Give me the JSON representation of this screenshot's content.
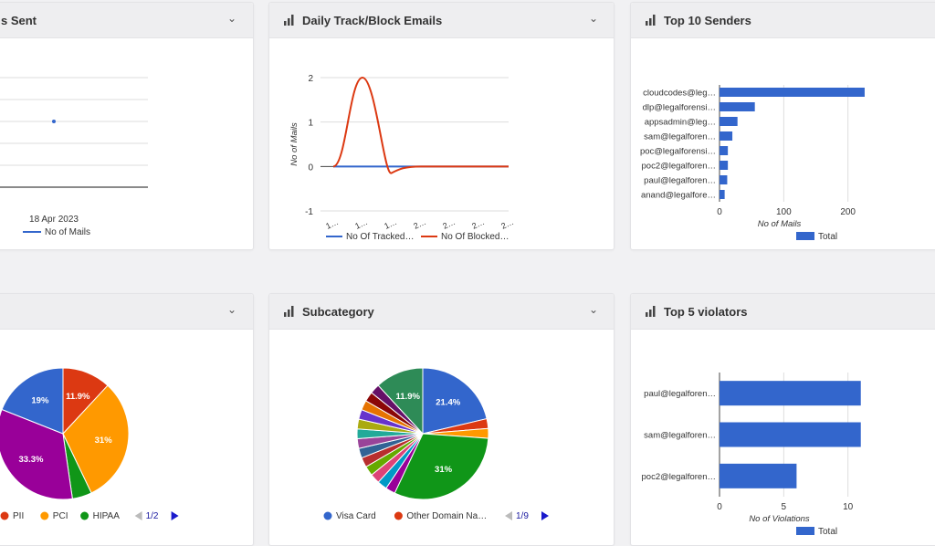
{
  "colors": {
    "blue": "#3366cc",
    "red": "#dc3912",
    "orange": "#ff9900",
    "green": "#109618",
    "purple": "#990099",
    "teal": "#2e8b57"
  },
  "widgets": {
    "mails_sent": {
      "title": "s Sent",
      "icon": "chevron-down-icon",
      "chart_data": {
        "type": "line",
        "x": [
          "18 Apr 2023"
        ],
        "series": [
          {
            "name": "No of Mails",
            "values": [
              1
            ]
          }
        ],
        "xlabel": "",
        "ylabel": ""
      }
    },
    "track_block": {
      "title": "Daily Track/Block Emails",
      "icon": "bar-chart-icon",
      "chart_data": {
        "type": "line",
        "categories": [
          "1…",
          "1…",
          "1…",
          "2…",
          "2…",
          "2…",
          "2…"
        ],
        "series": [
          {
            "name": "No Of Tracked…",
            "values": [
              0,
              0,
              0,
              0,
              0,
              0,
              0
            ]
          },
          {
            "name": "No Of Blocked…",
            "values": [
              0,
              2,
              0,
              0,
              0,
              0,
              0
            ]
          }
        ],
        "y_ticks": [
          "2",
          "1",
          "0",
          "-1"
        ],
        "ylim": [
          -1,
          2
        ],
        "ylabel": "No of Mails",
        "xlabel": ""
      }
    },
    "top_senders": {
      "title": "Top 10 Senders",
      "icon": "bar-chart-icon",
      "chart_data": {
        "type": "bar",
        "orientation": "horizontal",
        "categories": [
          "cloudcodes@leg…",
          "dlp@legalforensi…",
          "appsadmin@leg…",
          "sam@legalforen…",
          "poc@legalforensi…",
          "poc2@legalforen…",
          "paul@legalforen…",
          "anand@legalfore…"
        ],
        "series": [
          {
            "name": "Total",
            "values": [
              226,
              55,
              28,
              20,
              13,
              13,
              12,
              8
            ]
          }
        ],
        "x_ticks": [
          "0",
          "100",
          "200"
        ],
        "xlim": [
          0,
          300
        ],
        "xlabel": "No of Mails",
        "ylabel": ""
      }
    },
    "category": {
      "title": "",
      "icon": "chevron-down-icon",
      "chart_data": {
        "type": "pie",
        "slices": [
          {
            "label": "PII",
            "value": 11.9,
            "text": "11.9%"
          },
          {
            "label": "PCI",
            "value": 31,
            "text": "31%"
          },
          {
            "label": "HIPAA",
            "value": 4.8,
            "text": ""
          },
          {
            "label": "",
            "value": 33.3,
            "text": "33.3%"
          },
          {
            "label": "",
            "value": 19,
            "text": "19%"
          }
        ],
        "legend": [
          "PII",
          "PCI",
          "HIPAA"
        ],
        "pager": "1/2"
      }
    },
    "subcategory": {
      "title": "Subcategory",
      "icon": "bar-chart-icon",
      "chart_data": {
        "type": "pie",
        "slices": [
          {
            "label": "Visa Card",
            "value": 21.4,
            "text": "21.4%"
          },
          {
            "label": "Other Domain Na…",
            "value": 2.4,
            "text": ""
          },
          {
            "label": "",
            "value": 2.4,
            "text": ""
          },
          {
            "label": "",
            "value": 31,
            "text": "31%"
          },
          {
            "label": "",
            "value": 2.4,
            "text": ""
          },
          {
            "label": "",
            "value": 2.4,
            "text": ""
          },
          {
            "label": "",
            "value": 2.4,
            "text": ""
          },
          {
            "label": "",
            "value": 2.4,
            "text": ""
          },
          {
            "label": "",
            "value": 2.4,
            "text": ""
          },
          {
            "label": "",
            "value": 2.4,
            "text": ""
          },
          {
            "label": "",
            "value": 2.4,
            "text": ""
          },
          {
            "label": "",
            "value": 2.4,
            "text": ""
          },
          {
            "label": "",
            "value": 2.4,
            "text": ""
          },
          {
            "label": "",
            "value": 2.4,
            "text": ""
          },
          {
            "label": "",
            "value": 2.4,
            "text": ""
          },
          {
            "label": "",
            "value": 2.4,
            "text": ""
          },
          {
            "label": "",
            "value": 2.4,
            "text": ""
          },
          {
            "label": "",
            "value": 11.9,
            "text": "11.9%"
          }
        ],
        "legend": [
          "Visa Card",
          "Other Domain Na…"
        ],
        "pager": "1/9"
      }
    },
    "top_violators": {
      "title": "Top 5 violators",
      "icon": "bar-chart-icon",
      "chart_data": {
        "type": "bar",
        "orientation": "horizontal",
        "categories": [
          "paul@legalforen…",
          "sam@legalforen…",
          "poc2@legalforen…"
        ],
        "series": [
          {
            "name": "Total",
            "values": [
              11,
              11,
              6
            ]
          }
        ],
        "x_ticks": [
          "0",
          "5",
          "10"
        ],
        "xlim": [
          0,
          15
        ],
        "xlabel": "No of Violations",
        "ylabel": ""
      }
    }
  }
}
